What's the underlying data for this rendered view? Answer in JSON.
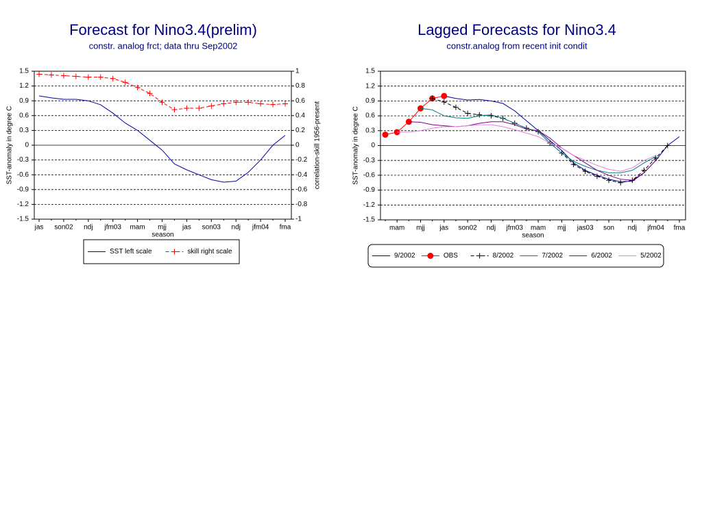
{
  "chart_data": [
    {
      "type": "line",
      "title": "Forecast for Nino3.4(prelim)",
      "subtitle": "constr. analog frct; data thru Sep2002",
      "x_label": "season",
      "y_label": "SST-anomaly in degree C",
      "y2_label": "correlation-skill 1956-present",
      "categories": [
        "jas",
        null,
        "son02",
        null,
        "ndj",
        null,
        "jfm03",
        null,
        "mam",
        null,
        "mjj",
        null,
        "jas",
        null,
        "son03",
        null,
        "ndj",
        null,
        "jfm04",
        null,
        "fma"
      ],
      "ylim": [
        -1.5,
        1.5
      ],
      "yticks": [
        1.5,
        1.2,
        0.9,
        0.6,
        0.3,
        0,
        -0.3,
        -0.6,
        -0.9,
        -1.2,
        -1.5
      ],
      "y2lim": [
        -1,
        1
      ],
      "y2ticks": [
        1,
        0.8,
        0.6,
        0.4,
        0.2,
        0,
        -0.2,
        -0.4,
        -0.6,
        -0.8,
        -1
      ],
      "grid": true,
      "series": [
        {
          "name": "SST left scale",
          "color": "#0000a0",
          "values": [
            1.0,
            0.96,
            0.93,
            0.93,
            0.9,
            0.82,
            0.65,
            0.45,
            0.3,
            0.1,
            -0.1,
            -0.38,
            -0.5,
            -0.6,
            -0.7,
            -0.75,
            -0.73,
            -0.55,
            -0.3,
            0.0,
            0.2
          ]
        },
        {
          "name": "skill right scale",
          "color": "#ff0000",
          "axis": "y2",
          "dash": true,
          "marker": "plus",
          "values": [
            0.96,
            0.95,
            0.94,
            0.93,
            0.92,
            0.92,
            0.9,
            0.85,
            0.78,
            0.7,
            0.58,
            0.48,
            0.5,
            0.5,
            0.53,
            0.56,
            0.58,
            0.58,
            0.56,
            0.55,
            0.56
          ]
        }
      ]
    },
    {
      "type": "line",
      "title": "Lagged Forecasts for Nino3.4",
      "subtitle": "constr.analog from recent init condit",
      "x_label": "season",
      "y_label": "SST-anomaly in degree C",
      "categories": [
        null,
        "mam",
        null,
        "mjj",
        null,
        "jas",
        null,
        "son02",
        null,
        "ndj",
        null,
        "jfm03",
        null,
        "mam",
        null,
        "mjj",
        null,
        "jas03",
        null,
        "son",
        null,
        "ndj",
        null,
        "jfm04",
        null,
        "fma"
      ],
      "ylim": [
        -1.5,
        1.5
      ],
      "yticks": [
        1.5,
        1.2,
        0.9,
        0.6,
        0.3,
        0,
        -0.3,
        -0.6,
        -0.9,
        -1.2,
        -1.5
      ],
      "grid": true,
      "series": [
        {
          "name": "9/2002",
          "color": "#0000a0",
          "values": [
            null,
            null,
            null,
            null,
            null,
            1.0,
            0.95,
            0.92,
            0.93,
            0.9,
            0.85,
            0.7,
            0.5,
            0.3,
            0.1,
            -0.1,
            -0.35,
            -0.5,
            -0.6,
            -0.68,
            -0.73,
            -0.72,
            -0.55,
            -0.3,
            0.0,
            0.18
          ]
        },
        {
          "name": "OBS",
          "color": "#ff0000",
          "marker": "circle",
          "values": [
            0.22,
            0.27,
            0.48,
            0.75,
            0.95,
            1.0,
            null,
            null,
            null,
            null,
            null,
            null,
            null,
            null,
            null,
            null,
            null,
            null,
            null,
            null,
            null,
            null,
            null,
            null,
            null,
            null
          ]
        },
        {
          "name": "8/2002",
          "color": "#000000",
          "dash": true,
          "marker": "plus",
          "values": [
            null,
            null,
            null,
            null,
            0.95,
            0.88,
            0.77,
            0.65,
            0.62,
            0.6,
            0.55,
            0.45,
            0.35,
            0.28,
            0.05,
            -0.15,
            -0.38,
            -0.52,
            -0.62,
            -0.7,
            -0.75,
            -0.7,
            -0.5,
            -0.25,
            0.0,
            null
          ]
        },
        {
          "name": "7/2002",
          "color": "#008080",
          "values": [
            null,
            null,
            null,
            0.75,
            0.72,
            0.6,
            0.56,
            0.55,
            0.6,
            0.62,
            0.55,
            0.45,
            0.35,
            0.28,
            0.05,
            -0.15,
            -0.32,
            -0.42,
            -0.5,
            -0.55,
            -0.55,
            -0.5,
            -0.35,
            -0.22,
            null,
            null
          ]
        },
        {
          "name": "6/2002",
          "color": "#800080",
          "values": [
            null,
            null,
            0.48,
            0.47,
            0.42,
            0.4,
            0.38,
            0.4,
            0.45,
            0.48,
            0.48,
            0.42,
            0.33,
            0.3,
            0.15,
            -0.05,
            -0.2,
            -0.35,
            -0.5,
            -0.6,
            -0.68,
            -0.7,
            -0.55,
            -0.3,
            null,
            null
          ]
        },
        {
          "name": "5/2002",
          "color": "#e080e0",
          "values": [
            null,
            0.27,
            0.27,
            0.3,
            0.35,
            0.38,
            0.38,
            0.4,
            0.42,
            0.42,
            0.38,
            0.32,
            0.25,
            0.18,
            0.05,
            -0.05,
            -0.2,
            -0.3,
            -0.4,
            -0.48,
            -0.52,
            -0.45,
            -0.3,
            -0.2,
            null,
            null
          ]
        }
      ]
    }
  ]
}
